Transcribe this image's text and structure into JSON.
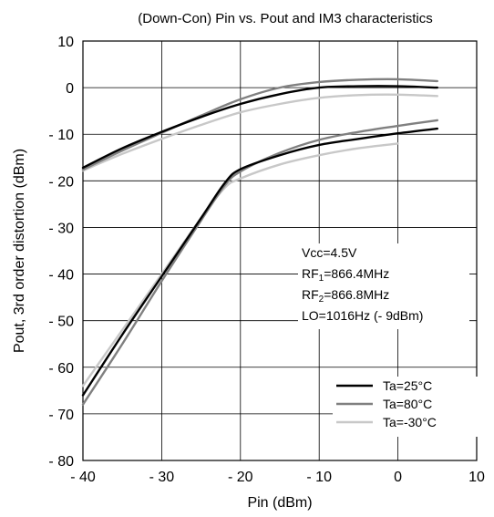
{
  "chart_data": {
    "type": "line",
    "title": "(Down-Con) Pin vs. Pout and IM3 characteristics",
    "xlabel": "Pin  (dBm)",
    "ylabel": "Pout, 3rd order distortion  (dBm)",
    "xlim": [
      -40,
      10
    ],
    "ylim": [
      -80,
      10
    ],
    "x_ticks": [
      -40,
      -30,
      -20,
      -10,
      0,
      10
    ],
    "x_tick_labels": [
      "- 40",
      "- 30",
      "- 20",
      "- 10",
      "0",
      "10"
    ],
    "y_ticks": [
      10,
      0,
      -10,
      -20,
      -30,
      -40,
      -50,
      -60,
      -70,
      -80
    ],
    "y_tick_labels": [
      "10",
      "0",
      "- 10",
      "- 20",
      "- 30",
      "- 40",
      "- 50",
      "- 60",
      "- 70",
      "- 80"
    ],
    "grid": true,
    "legend_position": "bottom-right",
    "annotation_lines": [
      "Vcc=4.5V",
      "RF1=866.4MHz",
      "RF2=866.8MHz",
      "LO=1016Hz (- 9dBm)"
    ],
    "series": [
      {
        "name": "Ta=25°C",
        "color": "#000000",
        "curve": "Pout",
        "x": [
          -40,
          -35,
          -30,
          -25,
          -20,
          -15,
          -10,
          -5,
          0,
          5
        ],
        "y": [
          -17.2,
          -13.0,
          -9.5,
          -6.3,
          -3.5,
          -1.4,
          0.0,
          0.3,
          0.3,
          0.0
        ]
      },
      {
        "name": "Ta=80°C",
        "color": "#808080",
        "curve": "Pout",
        "x": [
          -40,
          -35,
          -30,
          -25,
          -20,
          -15,
          -10,
          -5,
          0,
          5
        ],
        "y": [
          -17.6,
          -13.5,
          -9.7,
          -6.0,
          -2.5,
          0.0,
          1.2,
          1.7,
          1.8,
          1.4
        ]
      },
      {
        "name": "Ta=-30°C",
        "color": "#c8c8c8",
        "curve": "Pout",
        "x": [
          -40,
          -35,
          -30,
          -25,
          -20,
          -15,
          -10,
          -5,
          0,
          5
        ],
        "y": [
          -17.8,
          -14.2,
          -11.0,
          -8.0,
          -5.3,
          -3.5,
          -2.2,
          -1.6,
          -1.5,
          -1.8
        ]
      },
      {
        "name": "Ta=25°C",
        "color": "#000000",
        "curve": "IM3",
        "x": [
          -40,
          -35,
          -30,
          -25,
          -22,
          -20,
          -15,
          -10,
          -5,
          0,
          5
        ],
        "y": [
          -66,
          -53,
          -40.5,
          -28,
          -20.5,
          -17.5,
          -14.5,
          -12.3,
          -11.0,
          -9.8,
          -8.8
        ]
      },
      {
        "name": "Ta=80°C",
        "color": "#808080",
        "curve": "IM3",
        "x": [
          -40,
          -35,
          -30,
          -25,
          -22,
          -20,
          -15,
          -10,
          -5,
          0,
          5
        ],
        "y": [
          -68,
          -55,
          -41.5,
          -28.5,
          -21,
          -18,
          -14.0,
          -11.2,
          -9.5,
          -8.2,
          -7.0
        ]
      },
      {
        "name": "Ta=-30°C",
        "color": "#c8c8c8",
        "curve": "IM3",
        "x": [
          -40,
          -35,
          -30,
          -25,
          -22,
          -20,
          -15,
          -10,
          -5,
          0
        ],
        "y": [
          -64,
          -52,
          -40,
          -28,
          -21.5,
          -19.5,
          -16.5,
          -14.5,
          -13.0,
          -12.0
        ]
      }
    ]
  }
}
